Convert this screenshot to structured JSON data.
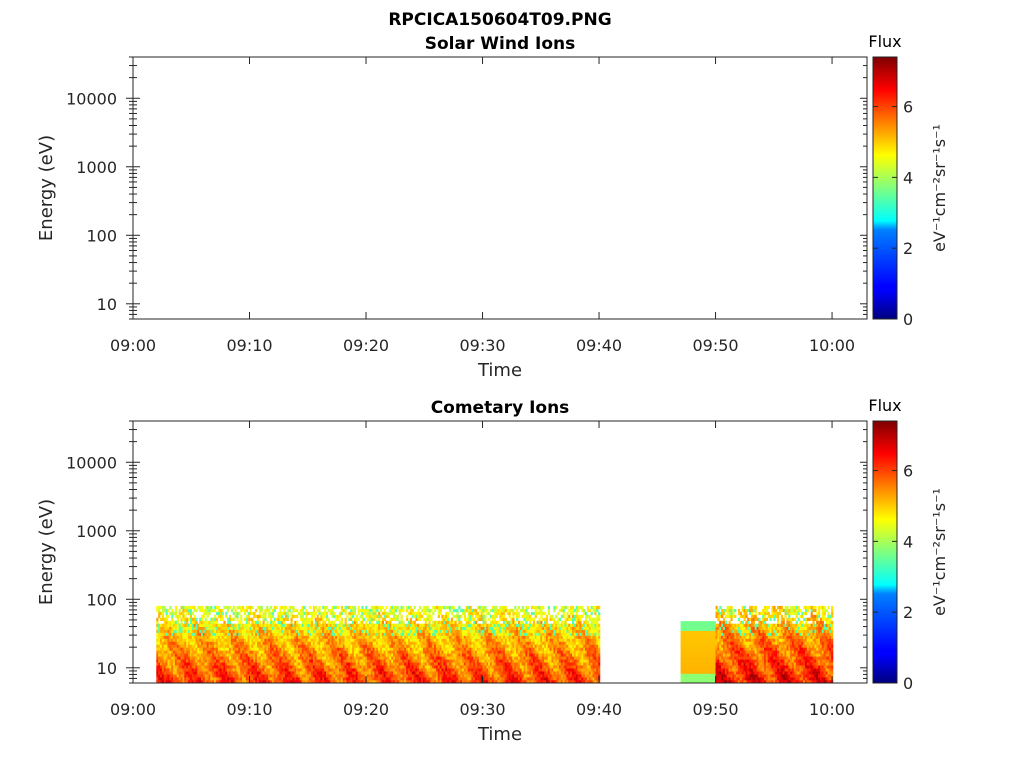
{
  "figure": {
    "title_line1": "RPCICA150604T09.PNG"
  },
  "chart_data": [
    {
      "type": "heatmap",
      "title": "Solar Wind Ions",
      "xlabel": "Time",
      "ylabel": "Energy (eV)",
      "y_scale": "log",
      "ylim": [
        6,
        40000
      ],
      "xlim": [
        "09:00",
        "10:03"
      ],
      "x_ticks": [
        "09:00",
        "09:10",
        "09:20",
        "09:30",
        "09:40",
        "09:50",
        "10:00"
      ],
      "y_ticks": [
        "10",
        "100",
        "1000",
        "10000"
      ],
      "colorbar": {
        "label": "Flux",
        "units": "eV⁻¹cm⁻²sr⁻¹s⁻¹",
        "range": [
          0,
          7.4
        ],
        "ticks": [
          "0",
          "2",
          "4",
          "6"
        ],
        "colormap": "jet"
      },
      "data_segments": []
    },
    {
      "type": "heatmap",
      "title": "Cometary Ions",
      "xlabel": "Time",
      "ylabel": "Energy (eV)",
      "y_scale": "log",
      "ylim": [
        6,
        40000
      ],
      "xlim": [
        "09:00",
        "10:03"
      ],
      "x_ticks": [
        "09:00",
        "09:10",
        "09:20",
        "09:30",
        "09:40",
        "09:50",
        "10:00"
      ],
      "y_ticks": [
        "10",
        "100",
        "1000",
        "10000"
      ],
      "colorbar": {
        "label": "Flux",
        "units": "eV⁻¹cm⁻²sr⁻¹s⁻¹",
        "range": [
          0,
          7.4
        ],
        "ticks": [
          "0",
          "2",
          "4",
          "6"
        ],
        "colormap": "jet"
      },
      "data_segments": [
        {
          "start": "09:02",
          "end": "09:40",
          "energy_max_eV": 80,
          "typical_flux": 5.5,
          "peak_flux": 6.6
        },
        {
          "start": "09:47",
          "end": "09:50",
          "energy_max_eV": 48,
          "typical_flux": 5.2,
          "peak_flux": 5.6
        },
        {
          "start": "09:50",
          "end": "10:00",
          "energy_max_eV": 80,
          "typical_flux": 5.8,
          "peak_flux": 7.0
        }
      ]
    }
  ]
}
